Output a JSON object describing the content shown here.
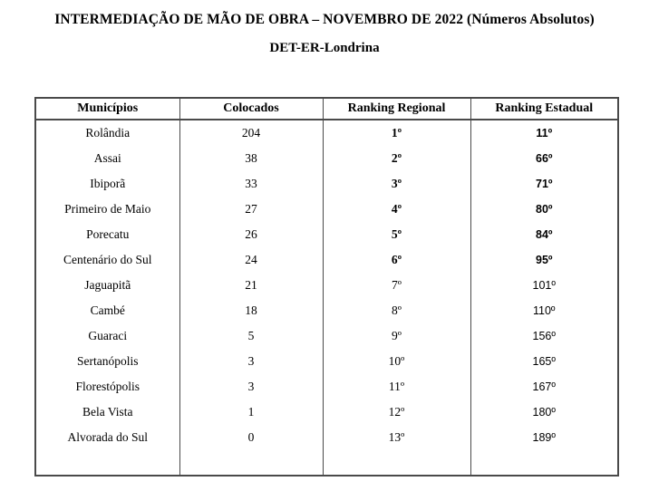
{
  "page": {
    "title": "INTERMEDIAÇÃO DE MÃO DE OBRA – NOVEMBRO DE 2022 (Números Absolutos)",
    "subtitle": "DET-ER-Londrina"
  },
  "table": {
    "columns": [
      "Municípios",
      "Colocados",
      "Ranking Regional",
      "Ranking Estadual"
    ],
    "rows": [
      {
        "municipio": "Rolândia",
        "colocados": "204",
        "ranking_regional": "1º",
        "ranking_estadual": "11º",
        "destaque": true
      },
      {
        "municipio": "Assai",
        "colocados": "38",
        "ranking_regional": "2º",
        "ranking_estadual": "66º",
        "destaque": true
      },
      {
        "municipio": "Ibiporã",
        "colocados": "33",
        "ranking_regional": "3º",
        "ranking_estadual": "71º",
        "destaque": true
      },
      {
        "municipio": "Primeiro de Maio",
        "colocados": "27",
        "ranking_regional": "4º",
        "ranking_estadual": "80º",
        "destaque": true
      },
      {
        "municipio": "Porecatu",
        "colocados": "26",
        "ranking_regional": "5º",
        "ranking_estadual": "84º",
        "destaque": true
      },
      {
        "municipio": "Centenário do Sul",
        "colocados": "24",
        "ranking_regional": "6º",
        "ranking_estadual": "95º",
        "destaque": true
      },
      {
        "municipio": "Jaguapitã",
        "colocados": "21",
        "ranking_regional": "7º",
        "ranking_estadual": "101º",
        "destaque": false
      },
      {
        "municipio": "Cambé",
        "colocados": "18",
        "ranking_regional": "8º",
        "ranking_estadual": "110º",
        "destaque": false
      },
      {
        "municipio": "Guaraci",
        "colocados": "5",
        "ranking_regional": "9º",
        "ranking_estadual": "156º",
        "destaque": false
      },
      {
        "municipio": "Sertanópolis",
        "colocados": "3",
        "ranking_regional": "10º",
        "ranking_estadual": "165º",
        "destaque": false
      },
      {
        "municipio": "Florestópolis",
        "colocados": "3",
        "ranking_regional": "11º",
        "ranking_estadual": "167º",
        "destaque": false
      },
      {
        "municipio": "Bela Vista",
        "colocados": "1",
        "ranking_regional": "12º",
        "ranking_estadual": "180º",
        "destaque": false
      },
      {
        "municipio": "Alvorada do Sul",
        "colocados": "0",
        "ranking_regional": "13º",
        "ranking_estadual": "189º",
        "destaque": false
      }
    ]
  },
  "colors": {
    "text": "#000000",
    "border": "#4a4a4a",
    "background": "#ffffff"
  }
}
